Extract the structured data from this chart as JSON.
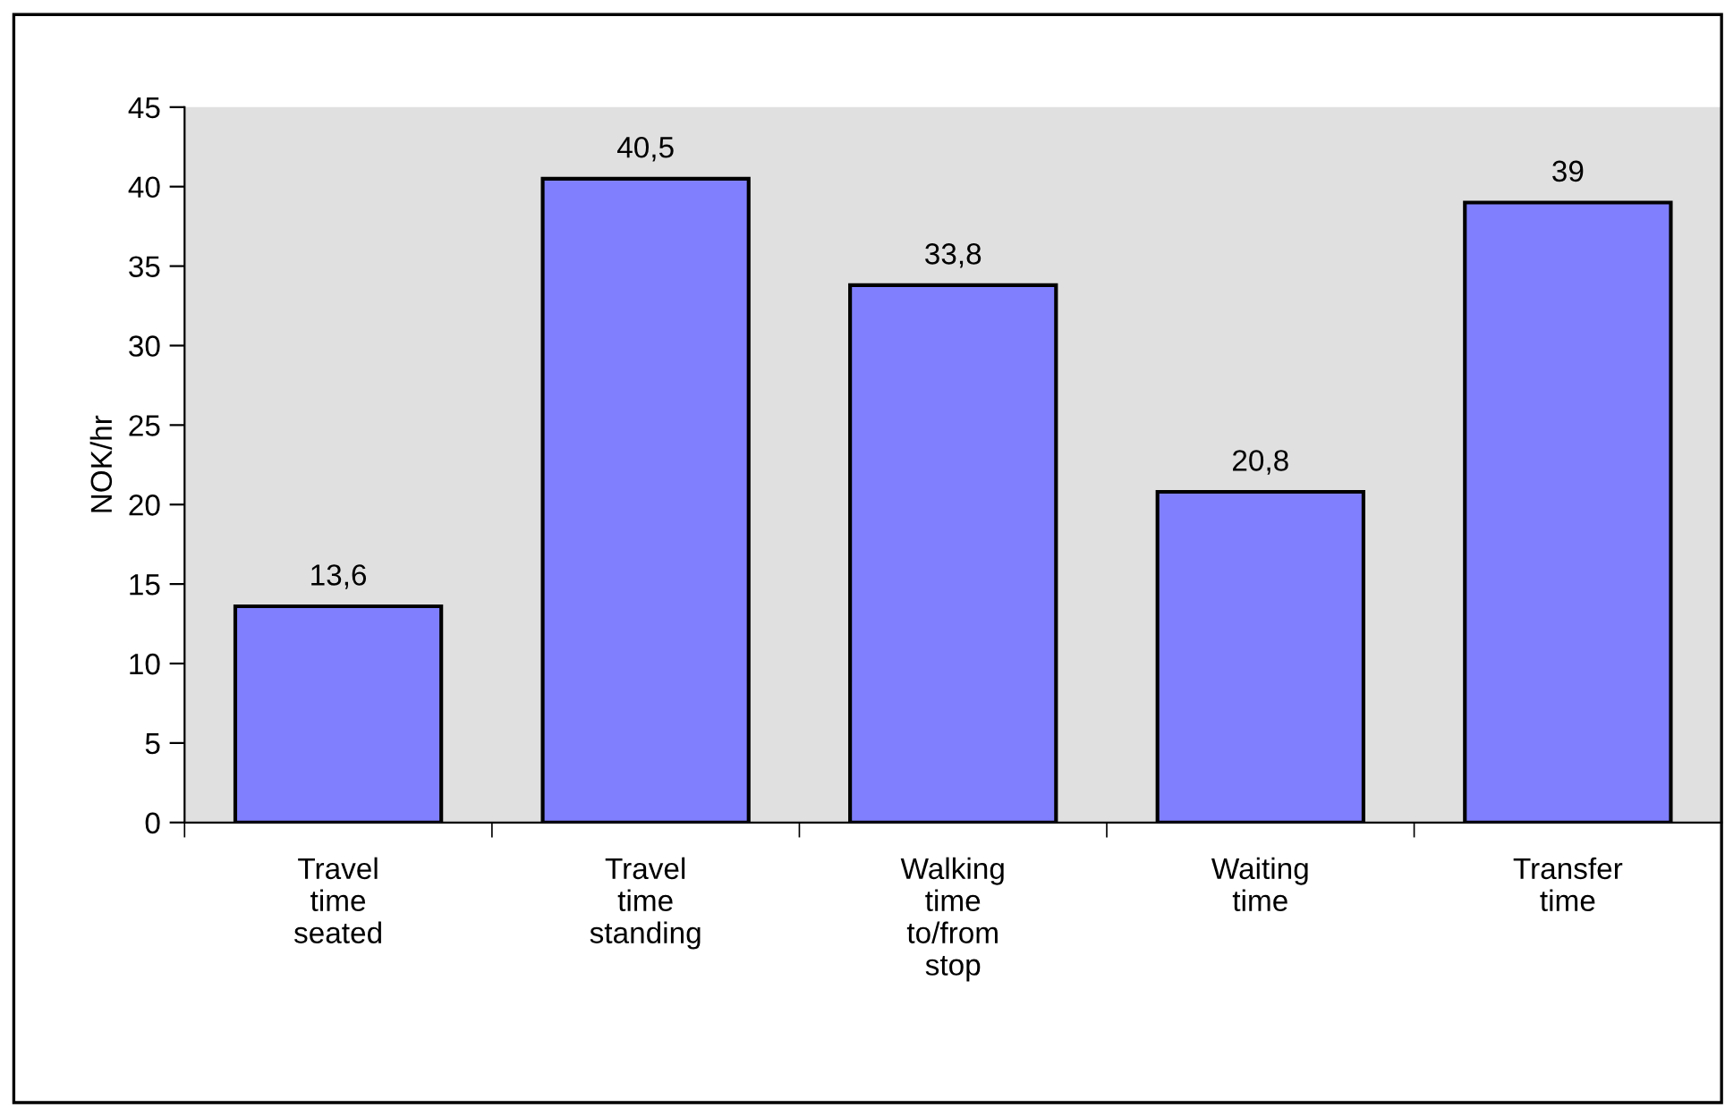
{
  "chart_data": {
    "type": "bar",
    "ylabel": "NOK/hr",
    "categories": [
      "Travel time seated",
      "Travel time standing",
      "Walking time to/from stop",
      "Waiting time",
      "Transfer time"
    ],
    "values": [
      13.6,
      40.5,
      33.8,
      20.8,
      39
    ],
    "value_labels": [
      "13,6",
      "40,5",
      "33,8",
      "20,8",
      "39"
    ],
    "color": "#8080ff",
    "ylim": [
      0,
      45
    ],
    "yticks": [
      0,
      5,
      10,
      15,
      20,
      25,
      30,
      35,
      40,
      45
    ],
    "grid": false
  }
}
